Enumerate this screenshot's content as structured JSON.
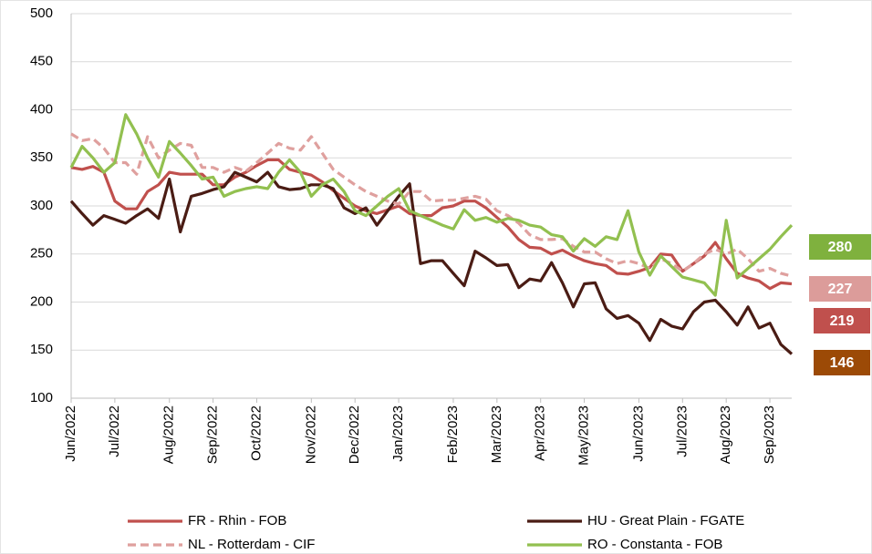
{
  "chart_data": {
    "type": "line",
    "categories": [
      "Jun/2022",
      null,
      null,
      null,
      "Jul/2022",
      null,
      null,
      null,
      null,
      "Aug/2022",
      null,
      null,
      null,
      "Sep/2022",
      null,
      null,
      null,
      "Oct/2022",
      null,
      null,
      null,
      null,
      "Nov/2022",
      null,
      null,
      null,
      "Dec/2022",
      null,
      null,
      null,
      "Jan/2023",
      null,
      null,
      null,
      null,
      "Feb/2023",
      null,
      null,
      null,
      "Mar/2023",
      null,
      null,
      null,
      "Apr/2023",
      null,
      null,
      null,
      "May/2023",
      null,
      null,
      null,
      null,
      "Jun/2023",
      null,
      null,
      null,
      "Jul/2023",
      null,
      null,
      null,
      "Aug/2023",
      null,
      null,
      null,
      "Sep/2023",
      null,
      null
    ],
    "series": [
      {
        "name": "FR - Rhin - FOB",
        "color": "#c0504d",
        "badge_color": "#c0504d",
        "dash": false,
        "values": [
          340,
          338,
          341,
          335,
          305,
          297,
          297,
          315,
          322,
          335,
          333,
          333,
          333,
          322,
          322,
          330,
          335,
          342,
          348,
          348,
          338,
          335,
          332,
          325,
          316,
          308,
          300,
          295,
          292,
          296,
          300,
          292,
          290,
          290,
          298,
          300,
          305,
          305,
          298,
          288,
          278,
          265,
          257,
          256,
          250,
          254,
          248,
          243,
          240,
          238,
          230,
          229,
          232,
          236,
          250,
          249,
          232,
          240,
          248,
          262,
          245,
          230,
          225,
          222,
          214,
          220,
          219
        ]
      },
      {
        "name": "HU - Great Plain - FGATE",
        "color": "#4a1c14",
        "badge_color": "#9c4a06",
        "dash": false,
        "values": [
          305,
          292,
          280,
          290,
          286,
          282,
          290,
          297,
          287,
          328,
          273,
          310,
          313,
          317,
          320,
          335,
          330,
          325,
          335,
          320,
          317,
          318,
          322,
          322,
          318,
          298,
          292,
          298,
          280,
          295,
          310,
          323,
          240,
          243,
          243,
          230,
          217,
          253,
          246,
          238,
          239,
          215,
          224,
          222,
          241,
          220,
          195,
          219,
          220,
          193,
          183,
          186,
          178,
          160,
          182,
          175,
          172,
          190,
          200,
          202,
          190,
          176,
          195,
          173,
          178,
          156,
          146
        ]
      },
      {
        "name": "NL - Rotterdam - CIF",
        "color": "#dfa09e",
        "badge_color": "#dc9c9a",
        "dash": true,
        "values": [
          375,
          368,
          370,
          360,
          345,
          345,
          333,
          372,
          350,
          358,
          365,
          363,
          340,
          340,
          335,
          340,
          336,
          345,
          355,
          365,
          360,
          358,
          372,
          355,
          338,
          330,
          322,
          315,
          310,
          305,
          302,
          315,
          315,
          305,
          306,
          306,
          308,
          310,
          307,
          295,
          290,
          282,
          270,
          265,
          265,
          266,
          258,
          252,
          252,
          245,
          240,
          243,
          240,
          235,
          245,
          240,
          232,
          240,
          250,
          255,
          250,
          255,
          245,
          232,
          235,
          230,
          227
        ]
      },
      {
        "name": "RO - Constanta - FOB",
        "color": "#92c050",
        "badge_color": "#7fb13e",
        "dash": false,
        "values": [
          340,
          362,
          350,
          335,
          345,
          395,
          375,
          350,
          330,
          367,
          355,
          342,
          328,
          330,
          310,
          315,
          318,
          320,
          318,
          335,
          348,
          335,
          310,
          322,
          328,
          315,
          295,
          290,
          300,
          310,
          318,
          295,
          290,
          285,
          280,
          276,
          296,
          285,
          288,
          283,
          287,
          285,
          280,
          278,
          270,
          268,
          253,
          266,
          258,
          268,
          265,
          295,
          252,
          228,
          248,
          237,
          226,
          223,
          220,
          207,
          285,
          225,
          235,
          245,
          255,
          268,
          280
        ]
      }
    ],
    "ylim": [
      100,
      500
    ],
    "yticks": [
      100,
      150,
      200,
      250,
      300,
      350,
      400,
      450,
      500
    ],
    "grid": true
  }
}
